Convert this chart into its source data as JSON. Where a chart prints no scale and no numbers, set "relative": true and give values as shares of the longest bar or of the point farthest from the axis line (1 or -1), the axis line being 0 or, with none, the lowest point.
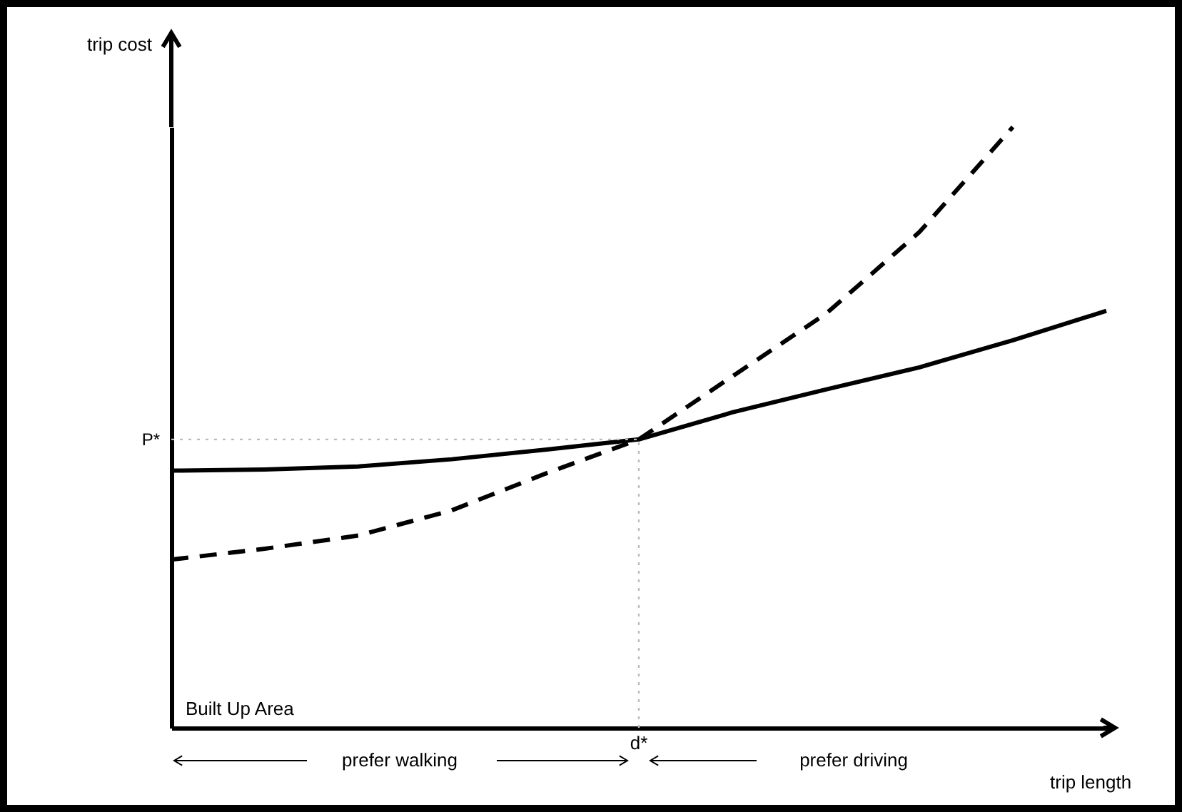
{
  "chart_data": {
    "type": "line",
    "xlabel": "trip length",
    "ylabel": "trip cost",
    "relative": true,
    "categories": [
      null,
      null,
      null,
      null,
      null,
      null,
      null,
      null,
      null,
      null,
      null
    ],
    "series": [
      {
        "color": "#000000",
        "line_style": "solid",
        "values": [
          0.428,
          0.43,
          0.435,
          0.447,
          0.463,
          0.48,
          0.525,
          0.563,
          0.6,
          0.645,
          0.694
        ]
      },
      {
        "color": "#000000",
        "line_style": "dashed",
        "values": [
          0.28,
          0.298,
          0.32,
          0.362,
          0.423,
          0.48,
          0.585,
          0.689,
          0.825,
          1,
          null
        ]
      }
    ],
    "ref_lines": [
      {
        "axis": "y",
        "value": 0.48,
        "label": "P*",
        "color": "#bbbbbb",
        "line_style": "dotted"
      }
    ],
    "annotations": [
      "Built Up Area",
      "prefer walking",
      "prefer driving",
      "d*"
    ]
  }
}
